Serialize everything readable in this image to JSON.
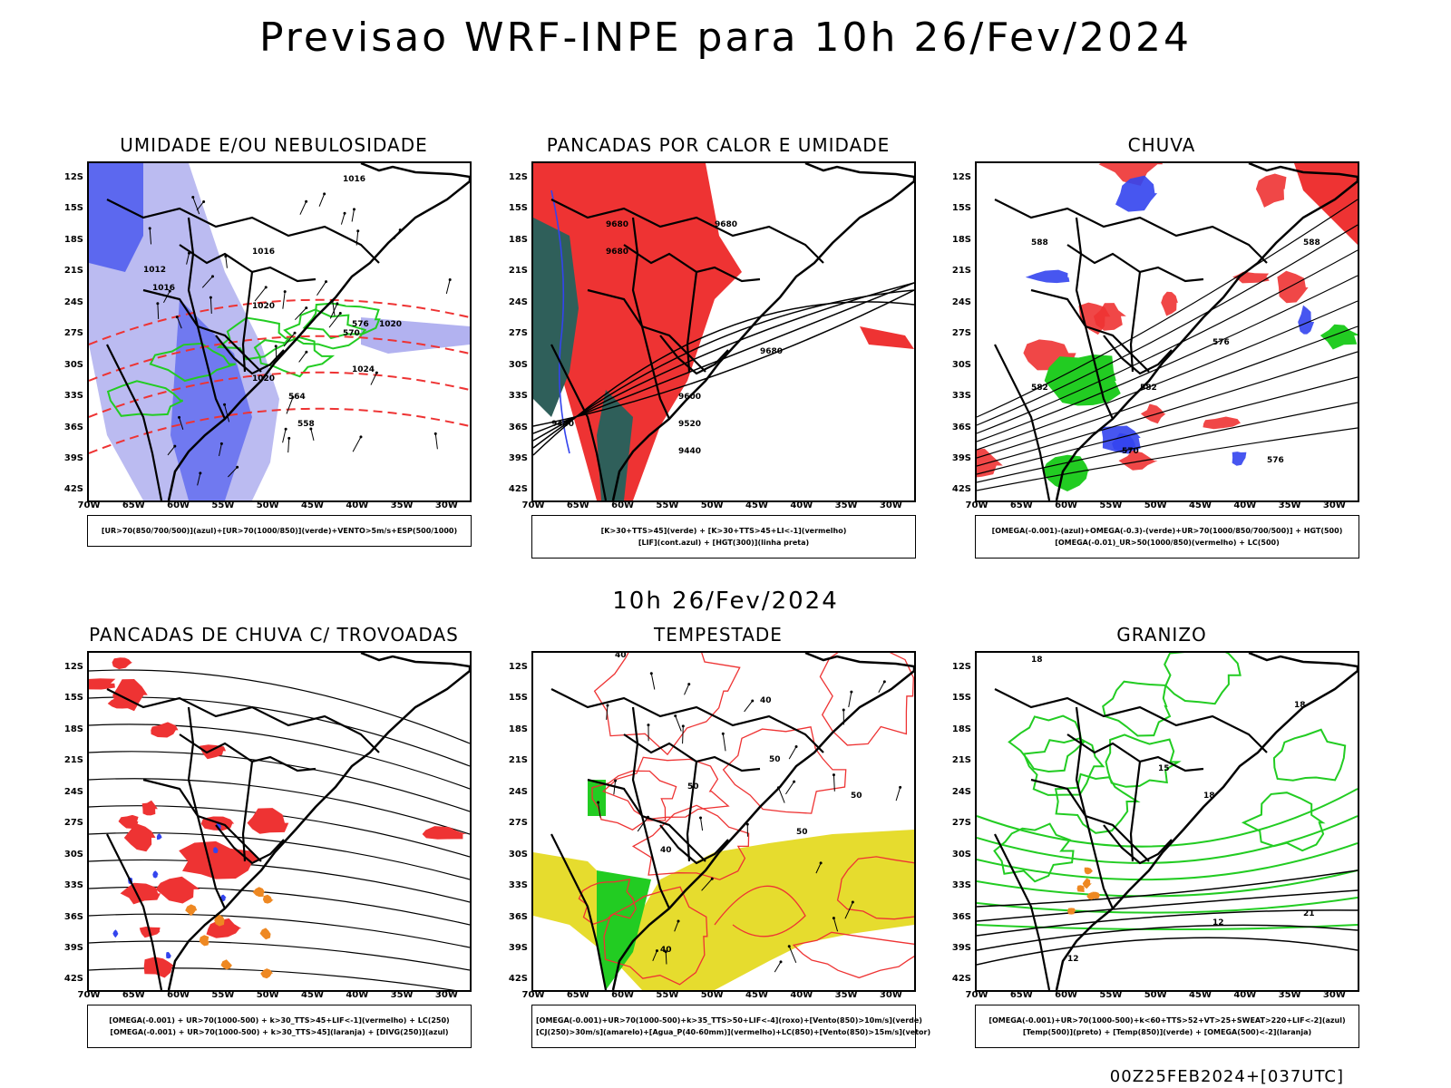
{
  "title": "Previsao WRF-INPE  para 10h 26/Fev/2024",
  "mid_date": "10h 26/Fev/2024",
  "footer": "00Z25FEB2024+[037UTC]",
  "lat_labels": [
    "12S",
    "15S",
    "18S",
    "21S",
    "24S",
    "27S",
    "30S",
    "33S",
    "36S",
    "39S",
    "42S"
  ],
  "lon_labels": [
    "70W",
    "65W",
    "60W",
    "55W",
    "50W",
    "45W",
    "40W",
    "35W",
    "30W"
  ],
  "colors": {
    "green": "#22cc22",
    "red": "#ee3333",
    "blue": "#3344ee",
    "yellow": "#e6dc2e",
    "orange": "#ee8822",
    "dark_teal": "#2f5f5a",
    "lavender": "#aaaaee"
  },
  "panels": [
    {
      "title": "UMIDADE E/OU NEBULOSIDADE",
      "legend": [
        "[UR>70(850/700/500)](azul)+[UR>70(1000/850)](verde)+VENTO>5m/s+ESP(500/1000)"
      ],
      "labels": [
        "1016",
        "1016",
        "1016",
        "1020",
        "1020",
        "1024",
        "1020",
        "1012",
        "576",
        "570",
        "564",
        "558"
      ]
    },
    {
      "title": "PANCADAS POR CALOR E UMIDADE",
      "legend": [
        "[K>30+TTS>45](verde) + [K>30+TTS>45+LI<-1](vermelho)",
        "[LIF](cont.azul) + [HGT(300)](linha preta)"
      ],
      "labels": [
        "9680",
        "9680",
        "9680",
        "9600",
        "9520",
        "9440",
        "9680",
        "9440"
      ]
    },
    {
      "title": "CHUVA",
      "legend": [
        "[OMEGA(-0.001)-(azul)+OMEGA(-0.3)-(verde)+UR>70(1000/850/700/500)] + HGT(500)",
        "[OMEGA(-0.01)_UR>50(1000/850)(vermelho) + LC(500)"
      ],
      "labels": [
        "588",
        "588",
        "582",
        "576",
        "576",
        "570",
        "582"
      ]
    },
    {
      "title": "PANCADAS DE CHUVA C/ TROVOADAS",
      "legend": [
        "[OMEGA(-0.001) + UR>70(1000-500) + k>30_TTS>45+LIF<-1](vermelho) + LC(250)",
        "[OMEGA(-0.001) + UR>70(1000-500) + k>30_TTS>45](laranja) + [DIVG(250)](azul)"
      ],
      "labels": []
    },
    {
      "title": "TEMPESTADE",
      "legend": [
        "[OMEGA(-0.001)+UR>70(1000-500)+k>35_TTS>50+LIF<-4](roxo)+[Vento(850)>10m/s](verde)",
        "[CJ(250)>30m/s](amarelo)+[Agua_P(40-60mm)](vermelho)+LC(850)+[Vento(850)>15m/s](vetor)"
      ],
      "labels": [
        "40",
        "50",
        "50",
        "40",
        "40",
        "50",
        "50",
        "40"
      ]
    },
    {
      "title": "GRANIZO",
      "legend": [
        "[OMEGA(-0.001)+UR>70(1000-500)+k<60+TTS>52+VT>25+SWEAT>220+LIF<-2](azul)",
        "[Temp(500)](preto) + [Temp(850)](verde) + [OMEGA(500)<-2](laranja)"
      ],
      "labels": [
        "18",
        "18",
        "12",
        "12",
        "21",
        "18",
        "15"
      ]
    }
  ]
}
